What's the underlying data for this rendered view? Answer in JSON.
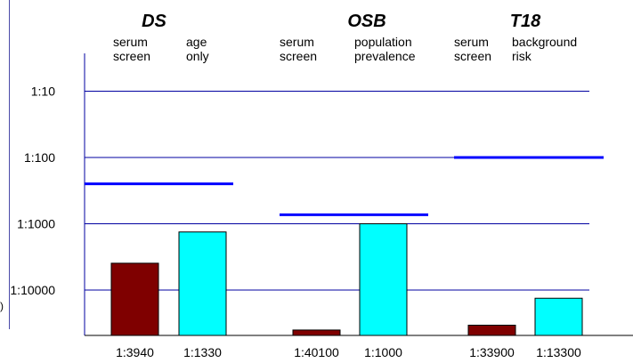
{
  "chart_data": {
    "type": "bar",
    "title": "",
    "xlabel": "",
    "ylabel": "",
    "yscale": "log",
    "ylim": [
      30000,
      5
    ],
    "yticks": [
      {
        "value": 10,
        "label": "1:10"
      },
      {
        "value": 100,
        "label": "1:100"
      },
      {
        "value": 1000,
        "label": "1:1000"
      },
      {
        "value": 10000,
        "label": "1:10000"
      }
    ],
    "grid": true,
    "colors": {
      "serum_screen": "#7f0000",
      "comparison": "#00ffff",
      "risk_line": "#0000ff",
      "grid": "#0000a0"
    },
    "groups": [
      {
        "name": "DS",
        "bar_labels": [
          [
            "serum",
            "screen"
          ],
          [
            "age",
            "only"
          ]
        ],
        "values": [
          3940,
          1330
        ],
        "value_labels": [
          "1:3940",
          "1:1330"
        ],
        "risk_line": 250
      },
      {
        "name": "OSB",
        "bar_labels": [
          [
            "serum",
            "screen"
          ],
          [
            "population",
            "prevalence"
          ]
        ],
        "values": [
          40100,
          1000
        ],
        "value_labels": [
          "1:40100",
          "1:1000"
        ],
        "risk_line": 730
      },
      {
        "name": "T18",
        "bar_labels": [
          [
            "serum",
            "screen"
          ],
          [
            "background",
            "risk"
          ]
        ],
        "values": [
          33900,
          13300
        ],
        "value_labels": [
          "1:33900",
          "1:13300"
        ],
        "risk_line": 100
      }
    ]
  },
  "stray_mark": ")"
}
